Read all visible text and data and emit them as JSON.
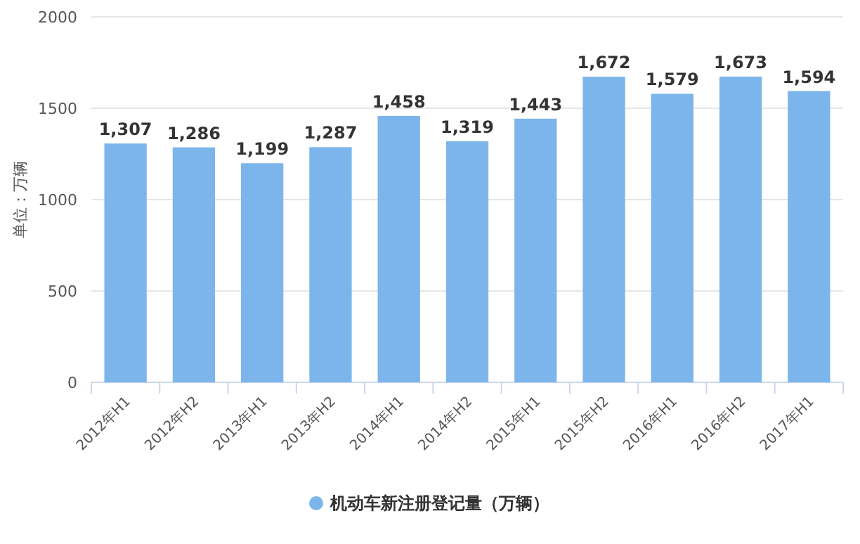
{
  "chart_data": {
    "type": "bar",
    "ylabel": "单位：万辆",
    "categories": [
      "2012年H1",
      "2012年H2",
      "2013年H1",
      "2013年H2",
      "2014年H1",
      "2014年H2",
      "2015年H1",
      "2015年H2",
      "2016年H1",
      "2016年H2",
      "2017年H1"
    ],
    "series": [
      {
        "name": "机动车新注册登记量（万辆）",
        "color": "#7cb5ec",
        "values": [
          1307,
          1286,
          1199,
          1287,
          1458,
          1319,
          1443,
          1672,
          1579,
          1673,
          1594
        ],
        "value_labels": [
          "1,307",
          "1,286",
          "1,199",
          "1,287",
          "1,458",
          "1,319",
          "1,443",
          "1,672",
          "1,579",
          "1,673",
          "1,594"
        ]
      }
    ],
    "ylim": [
      0,
      2000
    ],
    "yticks": [
      0,
      500,
      1000,
      1500,
      2000
    ],
    "grid": "y",
    "legend": "bottom"
  }
}
